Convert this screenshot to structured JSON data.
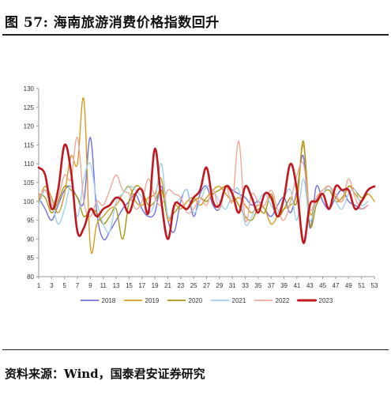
{
  "figure": {
    "title": "图 57: 海南旅游消费价格指数回升",
    "source": "资料来源：Wind，国泰君安证券研究"
  },
  "chart_data": {
    "type": "line",
    "title": "",
    "xlabel": "",
    "ylabel": "",
    "ylim": [
      80,
      130
    ],
    "xlim": [
      1,
      53
    ],
    "yticks": [
      80,
      85,
      90,
      95,
      100,
      105,
      110,
      115,
      120,
      125,
      130
    ],
    "xticks": [
      1,
      3,
      5,
      7,
      9,
      11,
      13,
      15,
      17,
      19,
      21,
      23,
      25,
      27,
      29,
      31,
      33,
      35,
      37,
      39,
      41,
      43,
      45,
      47,
      49,
      51,
      53
    ],
    "grid": false,
    "legend": "bottom",
    "series": [
      {
        "name": "2018",
        "color": "#7070dd",
        "width": 1.4,
        "x": [
          1,
          2,
          3,
          4,
          5,
          6,
          7,
          8,
          9,
          10,
          11,
          12,
          13,
          14,
          15,
          16,
          17,
          18,
          19,
          20,
          21,
          22,
          23,
          24,
          25,
          26,
          27,
          28,
          29,
          30,
          31,
          32,
          33,
          34,
          35,
          36,
          37,
          38,
          39,
          40,
          41,
          42,
          43,
          44,
          45,
          46,
          47,
          48,
          49,
          50,
          51,
          52
        ],
        "y": [
          101,
          98,
          95,
          99,
          103,
          104,
          101,
          100,
          117,
          97,
          90,
          92,
          95,
          98,
          100,
          102,
          98,
          96,
          97,
          104,
          95,
          92,
          100,
          103,
          96,
          102,
          104,
          99,
          98,
          104,
          103,
          102,
          101,
          99,
          100,
          98,
          96,
          99,
          101,
          97,
          103,
          112,
          93,
          104,
          100,
          98,
          101,
          103,
          100,
          99,
          98,
          99
        ]
      },
      {
        "name": "2019",
        "color": "#d99a22",
        "width": 1.4,
        "x": [
          1,
          2,
          3,
          4,
          5,
          6,
          7,
          8,
          9,
          10,
          11,
          12,
          13,
          14,
          15,
          16,
          17,
          18,
          19,
          20,
          21,
          22,
          23,
          24,
          25,
          26,
          27,
          28,
          29,
          30,
          31,
          32,
          33,
          34,
          35,
          36,
          37,
          38,
          39,
          40,
          41,
          42,
          43,
          44,
          45,
          46,
          47,
          48,
          49,
          50,
          51,
          52,
          53
        ],
        "y": [
          100,
          104,
          101,
          97,
          102,
          112,
          110,
          127,
          88,
          94,
          96,
          98,
          99,
          102,
          104,
          100,
          99,
          101,
          102,
          106,
          95,
          99,
          98,
          100,
          101,
          99,
          101,
          103,
          104,
          102,
          100,
          101,
          99,
          97,
          99,
          98,
          94,
          96,
          98,
          99,
          102,
          115,
          97,
          101,
          103,
          104,
          101,
          100,
          104,
          102,
          100,
          102,
          100
        ]
      },
      {
        "name": "2020",
        "color": "#aa9411",
        "width": 1.4,
        "x": [
          1,
          2,
          3,
          4,
          5,
          6,
          7,
          8,
          9,
          10,
          11,
          12,
          13,
          14,
          15,
          16,
          17,
          18,
          19,
          20,
          21,
          22,
          23,
          24,
          25,
          26,
          27,
          28,
          29,
          30,
          31,
          32,
          33,
          34,
          35,
          36,
          37,
          38,
          39,
          40,
          41,
          42,
          43,
          44,
          45,
          46,
          47,
          48,
          49,
          50,
          51,
          52
        ],
        "y": [
          102,
          101,
          97,
          100,
          104,
          103,
          101,
          96,
          98,
          97,
          94,
          96,
          98,
          90,
          100,
          104,
          103,
          99,
          100,
          103,
          96,
          97,
          99,
          98,
          100,
          101,
          100,
          102,
          103,
          104,
          102,
          99,
          96,
          95,
          98,
          97,
          102,
          96,
          98,
          101,
          100,
          116,
          94,
          99,
          102,
          103,
          100,
          101,
          104,
          103,
          101,
          102
        ]
      },
      {
        "name": "2021",
        "color": "#9fd0ec",
        "width": 1.4,
        "x": [
          1,
          2,
          3,
          4,
          5,
          6,
          7,
          8,
          9,
          10,
          11,
          12,
          13,
          14,
          15,
          16,
          17,
          18,
          19,
          20,
          21,
          22,
          23,
          24,
          25,
          26,
          27,
          28,
          29,
          30,
          31,
          32,
          33,
          34,
          35,
          36,
          37,
          38,
          39,
          40,
          41,
          42,
          43,
          44,
          45,
          46,
          47,
          48,
          49,
          50,
          51,
          52
        ],
        "y": [
          99,
          103,
          100,
          94,
          98,
          104,
          96,
          106,
          110,
          100,
          94,
          92,
          100,
          102,
          104,
          103,
          101,
          97,
          100,
          110,
          96,
          99,
          101,
          103,
          97,
          100,
          104,
          103,
          100,
          98,
          102,
          103,
          94,
          96,
          100,
          102,
          99,
          97,
          101,
          103,
          95,
          106,
          95,
          100,
          102,
          104,
          100,
          98,
          102,
          103,
          99,
          100
        ]
      },
      {
        "name": "2022",
        "color": "#f0a898",
        "width": 1.4,
        "x": [
          1,
          2,
          3,
          4,
          5,
          6,
          7,
          8,
          9,
          10,
          11,
          12,
          13,
          14,
          15,
          16,
          17,
          18,
          19,
          20,
          21,
          22,
          23,
          24,
          25,
          26,
          27,
          28,
          29,
          30,
          31,
          32,
          33,
          34,
          35,
          36,
          37,
          38,
          39,
          40,
          41,
          42,
          43,
          44,
          45,
          46,
          47,
          48,
          49,
          50,
          51,
          52
        ],
        "y": [
          101,
          103,
          99,
          101,
          107,
          106,
          117,
          100,
          96,
          100,
          99,
          103,
          107,
          103,
          102,
          98,
          100,
          106,
          101,
          99,
          103,
          102,
          101,
          97,
          98,
          101,
          99,
          103,
          98,
          104,
          100,
          116,
          95,
          102,
          100,
          99,
          103,
          98,
          95,
          100,
          107,
          110,
          98,
          101,
          103,
          104,
          102,
          100,
          106,
          101,
          98,
          99
        ]
      },
      {
        "name": "2023",
        "color": "#c0181e",
        "width": 2.6,
        "x": [
          1,
          2,
          3,
          4,
          5,
          6,
          7,
          8,
          9,
          10,
          11,
          12,
          13,
          14,
          15,
          16,
          17,
          18,
          19,
          20,
          21,
          22,
          23,
          24,
          25,
          26,
          27,
          28,
          29,
          30,
          31,
          32,
          33,
          34,
          35,
          36,
          37,
          38,
          39,
          40,
          41,
          42,
          43,
          44,
          45,
          46,
          47,
          48,
          49,
          50,
          51,
          52,
          53
        ],
        "y": [
          109,
          107,
          98,
          103,
          115,
          108,
          92,
          93,
          98,
          96,
          98,
          99,
          101,
          100,
          97,
          102,
          103,
          97,
          114,
          100,
          90,
          99,
          99,
          98,
          101,
          103,
          109,
          100,
          99,
          104,
          102,
          97,
          104,
          101,
          97,
          102,
          101,
          96,
          101,
          110,
          103,
          89,
          99,
          100,
          102,
          98,
          104,
          103,
          103,
          98,
          100,
          103,
          104
        ]
      }
    ]
  }
}
